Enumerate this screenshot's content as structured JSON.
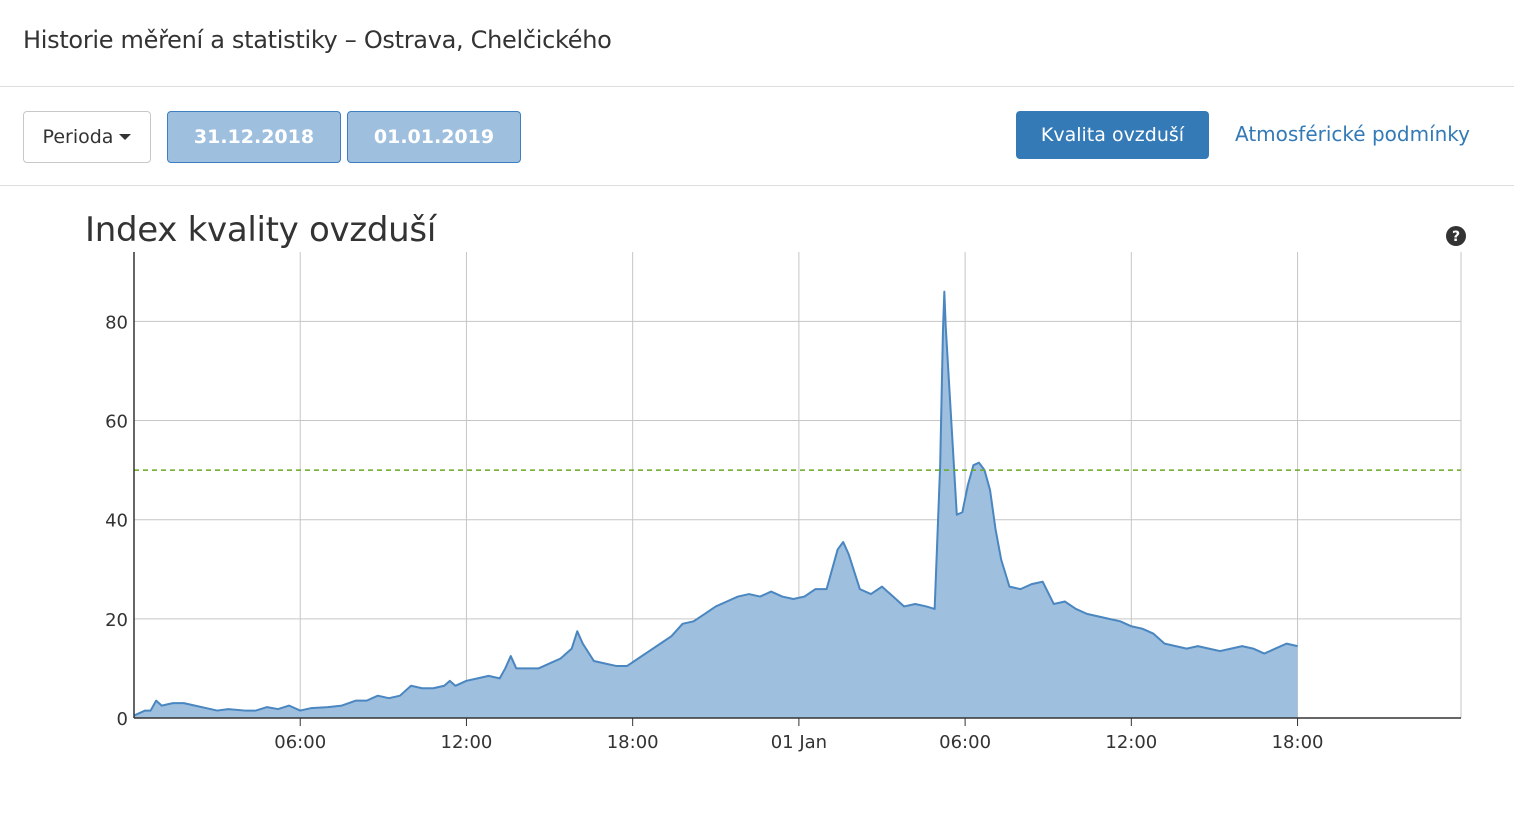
{
  "header": {
    "title": "Historie měření a statistiky – Ostrava, Chelčického"
  },
  "toolbar": {
    "period_label": "Perioda",
    "date_from": "31.12.2018",
    "date_to": "01.01.2019",
    "air_quality_label": "Kvalita ovzduší",
    "atmospheric_label": "Atmosférické podmínky"
  },
  "icons": {
    "help": "question-circle-icon",
    "dropdown": "caret-down-icon"
  },
  "colors": {
    "accent": "#337ab7",
    "area_fill": "#9ebfde",
    "line": "#4a86c0",
    "threshold": "#6aaa1e"
  },
  "chart_data": {
    "type": "area",
    "title": "Index kvality ovzduší",
    "xlabel": "",
    "ylabel": "",
    "x_unit": "hours from 31.12.2018 00:00",
    "x_ticks": [
      {
        "x": 6,
        "label": "06:00"
      },
      {
        "x": 12,
        "label": "12:00"
      },
      {
        "x": 18,
        "label": "18:00"
      },
      {
        "x": 24,
        "label": "01 Jan"
      },
      {
        "x": 30,
        "label": "06:00"
      },
      {
        "x": 36,
        "label": "12:00"
      },
      {
        "x": 42,
        "label": "18:00"
      }
    ],
    "y_ticks": [
      0,
      20,
      40,
      60,
      80
    ],
    "xlim": [
      0,
      47.9
    ],
    "ylim": [
      0,
      94
    ],
    "threshold": 50,
    "grid": true,
    "legend": "none",
    "points": [
      [
        0.0,
        0.5
      ],
      [
        0.4,
        1.5
      ],
      [
        0.6,
        1.5
      ],
      [
        0.8,
        3.5
      ],
      [
        1.0,
        2.5
      ],
      [
        1.4,
        3.0
      ],
      [
        1.8,
        3.0
      ],
      [
        2.2,
        2.5
      ],
      [
        2.6,
        2.0
      ],
      [
        3.0,
        1.5
      ],
      [
        3.4,
        1.8
      ],
      [
        4.0,
        1.5
      ],
      [
        4.4,
        1.5
      ],
      [
        4.8,
        2.2
      ],
      [
        5.2,
        1.8
      ],
      [
        5.6,
        2.5
      ],
      [
        6.0,
        1.5
      ],
      [
        6.4,
        2.0
      ],
      [
        7.0,
        2.2
      ],
      [
        7.5,
        2.5
      ],
      [
        8.0,
        3.5
      ],
      [
        8.4,
        3.5
      ],
      [
        8.8,
        4.5
      ],
      [
        9.2,
        4.0
      ],
      [
        9.6,
        4.5
      ],
      [
        10.0,
        6.5
      ],
      [
        10.4,
        6.0
      ],
      [
        10.8,
        6.0
      ],
      [
        11.2,
        6.5
      ],
      [
        11.4,
        7.5
      ],
      [
        11.6,
        6.5
      ],
      [
        12.0,
        7.5
      ],
      [
        12.4,
        8.0
      ],
      [
        12.8,
        8.5
      ],
      [
        13.2,
        8.0
      ],
      [
        13.4,
        10.0
      ],
      [
        13.6,
        12.5
      ],
      [
        13.8,
        10.0
      ],
      [
        14.2,
        10.0
      ],
      [
        14.6,
        10.0
      ],
      [
        15.0,
        11.0
      ],
      [
        15.4,
        12.0
      ],
      [
        15.6,
        13.0
      ],
      [
        15.8,
        14.0
      ],
      [
        16.0,
        17.5
      ],
      [
        16.2,
        15.0
      ],
      [
        16.6,
        11.5
      ],
      [
        17.0,
        11.0
      ],
      [
        17.4,
        10.5
      ],
      [
        17.8,
        10.5
      ],
      [
        18.2,
        12.0
      ],
      [
        18.6,
        13.5
      ],
      [
        19.0,
        15.0
      ],
      [
        19.4,
        16.5
      ],
      [
        19.8,
        19.0
      ],
      [
        20.2,
        19.5
      ],
      [
        20.6,
        21.0
      ],
      [
        21.0,
        22.5
      ],
      [
        21.4,
        23.5
      ],
      [
        21.8,
        24.5
      ],
      [
        22.2,
        25.0
      ],
      [
        22.6,
        24.5
      ],
      [
        23.0,
        25.5
      ],
      [
        23.4,
        24.5
      ],
      [
        23.8,
        24.0
      ],
      [
        24.2,
        24.5
      ],
      [
        24.6,
        26.0
      ],
      [
        25.0,
        26.0
      ],
      [
        25.4,
        34.0
      ],
      [
        25.6,
        35.5
      ],
      [
        25.8,
        33.0
      ],
      [
        26.2,
        26.0
      ],
      [
        26.6,
        25.0
      ],
      [
        27.0,
        26.5
      ],
      [
        27.4,
        24.5
      ],
      [
        27.8,
        22.5
      ],
      [
        28.2,
        23.0
      ],
      [
        28.6,
        22.5
      ],
      [
        28.9,
        22.0
      ],
      [
        29.1,
        51.0
      ],
      [
        29.2,
        78.0
      ],
      [
        29.25,
        86.0
      ],
      [
        29.3,
        79.0
      ],
      [
        29.5,
        60.0
      ],
      [
        29.7,
        41.0
      ],
      [
        29.9,
        41.5
      ],
      [
        30.1,
        47.0
      ],
      [
        30.3,
        51.0
      ],
      [
        30.5,
        51.5
      ],
      [
        30.7,
        50.0
      ],
      [
        30.9,
        46.0
      ],
      [
        31.1,
        38.0
      ],
      [
        31.3,
        32.0
      ],
      [
        31.6,
        26.5
      ],
      [
        32.0,
        26.0
      ],
      [
        32.4,
        27.0
      ],
      [
        32.8,
        27.5
      ],
      [
        33.2,
        23.0
      ],
      [
        33.6,
        23.5
      ],
      [
        34.0,
        22.0
      ],
      [
        34.4,
        21.0
      ],
      [
        34.8,
        20.5
      ],
      [
        35.2,
        20.0
      ],
      [
        35.6,
        19.5
      ],
      [
        36.0,
        18.5
      ],
      [
        36.4,
        18.0
      ],
      [
        36.8,
        17.0
      ],
      [
        37.2,
        15.0
      ],
      [
        37.6,
        14.5
      ],
      [
        38.0,
        14.0
      ],
      [
        38.4,
        14.5
      ],
      [
        38.8,
        14.0
      ],
      [
        39.2,
        13.5
      ],
      [
        39.6,
        14.0
      ],
      [
        40.0,
        14.5
      ],
      [
        40.4,
        14.0
      ],
      [
        40.8,
        13.0
      ],
      [
        41.2,
        14.0
      ],
      [
        41.6,
        15.0
      ],
      [
        42.0,
        14.5
      ]
    ]
  }
}
